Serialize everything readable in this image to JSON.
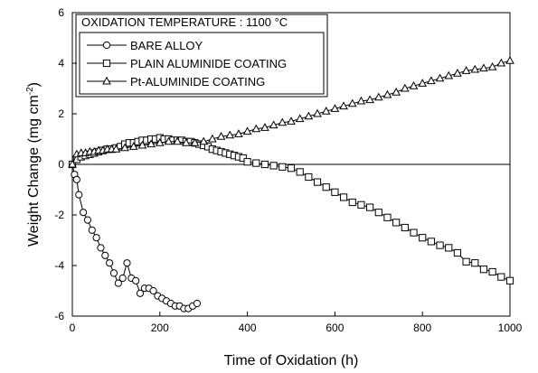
{
  "chart_data": {
    "type": "line",
    "annotation": "OXIDATION TEMPERATURE : 1100 °C",
    "xlabel": "Time of Oxidation (h)",
    "ylabel_main": "Weight Change (mg cm",
    "ylabel_sup": "-2",
    "ylabel_end": ")",
    "xlim": [
      0,
      1000
    ],
    "ylim": [
      -6,
      6
    ],
    "xticks": [
      0,
      200,
      400,
      600,
      800,
      1000
    ],
    "yticks": [
      -6,
      -4,
      -2,
      0,
      2,
      4,
      6
    ],
    "zero_line": true,
    "legend_position": "top-left",
    "series": [
      {
        "name": "BARE ALLOY",
        "marker": "circle",
        "x": [
          0,
          5,
          10,
          15,
          25,
          35,
          45,
          55,
          65,
          75,
          85,
          95,
          105,
          115,
          125,
          135,
          145,
          155,
          165,
          175,
          185,
          195,
          205,
          215,
          225,
          235,
          245,
          255,
          265,
          275,
          285
        ],
        "y": [
          0.0,
          -0.4,
          -0.6,
          -1.2,
          -1.9,
          -2.2,
          -2.6,
          -2.9,
          -3.3,
          -3.6,
          -3.9,
          -4.3,
          -4.7,
          -4.5,
          -3.9,
          -4.5,
          -4.6,
          -5.1,
          -4.9,
          -4.9,
          -5.0,
          -5.2,
          -5.3,
          -5.4,
          -5.5,
          -5.6,
          -5.6,
          -5.7,
          -5.7,
          -5.6,
          -5.5
        ]
      },
      {
        "name": "PLAIN ALUMINIDE COATING",
        "marker": "square",
        "x": [
          0,
          10,
          20,
          30,
          40,
          50,
          60,
          70,
          80,
          90,
          100,
          110,
          120,
          130,
          140,
          150,
          160,
          170,
          180,
          190,
          200,
          210,
          220,
          230,
          240,
          250,
          260,
          270,
          280,
          290,
          300,
          310,
          320,
          330,
          340,
          350,
          360,
          370,
          380,
          390,
          400,
          420,
          440,
          460,
          480,
          500,
          520,
          540,
          560,
          580,
          600,
          620,
          640,
          660,
          680,
          700,
          720,
          740,
          760,
          780,
          800,
          820,
          840,
          860,
          880,
          900,
          920,
          940,
          960,
          980,
          1000
        ],
        "y": [
          0.0,
          0.2,
          0.3,
          0.35,
          0.4,
          0.45,
          0.5,
          0.55,
          0.6,
          0.6,
          0.65,
          0.7,
          0.8,
          0.85,
          0.85,
          0.9,
          0.95,
          0.95,
          1.0,
          1.0,
          1.05,
          1.0,
          1.0,
          0.95,
          0.95,
          0.95,
          0.9,
          0.9,
          0.85,
          0.8,
          0.75,
          0.7,
          0.6,
          0.55,
          0.5,
          0.45,
          0.4,
          0.35,
          0.3,
          0.25,
          0.1,
          0.05,
          0.0,
          -0.05,
          -0.1,
          -0.15,
          -0.3,
          -0.5,
          -0.7,
          -0.9,
          -1.1,
          -1.3,
          -1.5,
          -1.6,
          -1.7,
          -1.9,
          -2.1,
          -2.3,
          -2.5,
          -2.7,
          -2.9,
          -3.05,
          -3.2,
          -3.3,
          -3.5,
          -3.85,
          -3.9,
          -4.15,
          -4.25,
          -4.45,
          -4.6
        ]
      },
      {
        "name": "Pt-ALUMINIDE COATING",
        "marker": "triangle",
        "x": [
          0,
          10,
          20,
          30,
          40,
          50,
          60,
          70,
          80,
          90,
          100,
          120,
          140,
          160,
          180,
          200,
          220,
          240,
          260,
          280,
          300,
          320,
          340,
          360,
          380,
          400,
          420,
          440,
          460,
          480,
          500,
          520,
          540,
          560,
          580,
          600,
          620,
          640,
          660,
          680,
          700,
          720,
          740,
          760,
          780,
          800,
          820,
          840,
          860,
          880,
          900,
          920,
          940,
          960,
          980,
          1000
        ],
        "y": [
          0.0,
          0.4,
          0.45,
          0.45,
          0.5,
          0.5,
          0.55,
          0.55,
          0.6,
          0.6,
          0.6,
          0.65,
          0.7,
          0.75,
          0.8,
          0.85,
          0.9,
          0.9,
          0.85,
          0.85,
          0.9,
          1.0,
          1.1,
          1.15,
          1.2,
          1.3,
          1.4,
          1.45,
          1.55,
          1.65,
          1.7,
          1.8,
          1.9,
          2.0,
          2.1,
          2.2,
          2.3,
          2.4,
          2.5,
          2.55,
          2.65,
          2.75,
          2.85,
          3.0,
          3.1,
          3.2,
          3.3,
          3.4,
          3.5,
          3.6,
          3.7,
          3.75,
          3.8,
          3.85,
          4.0,
          4.1
        ]
      }
    ]
  }
}
